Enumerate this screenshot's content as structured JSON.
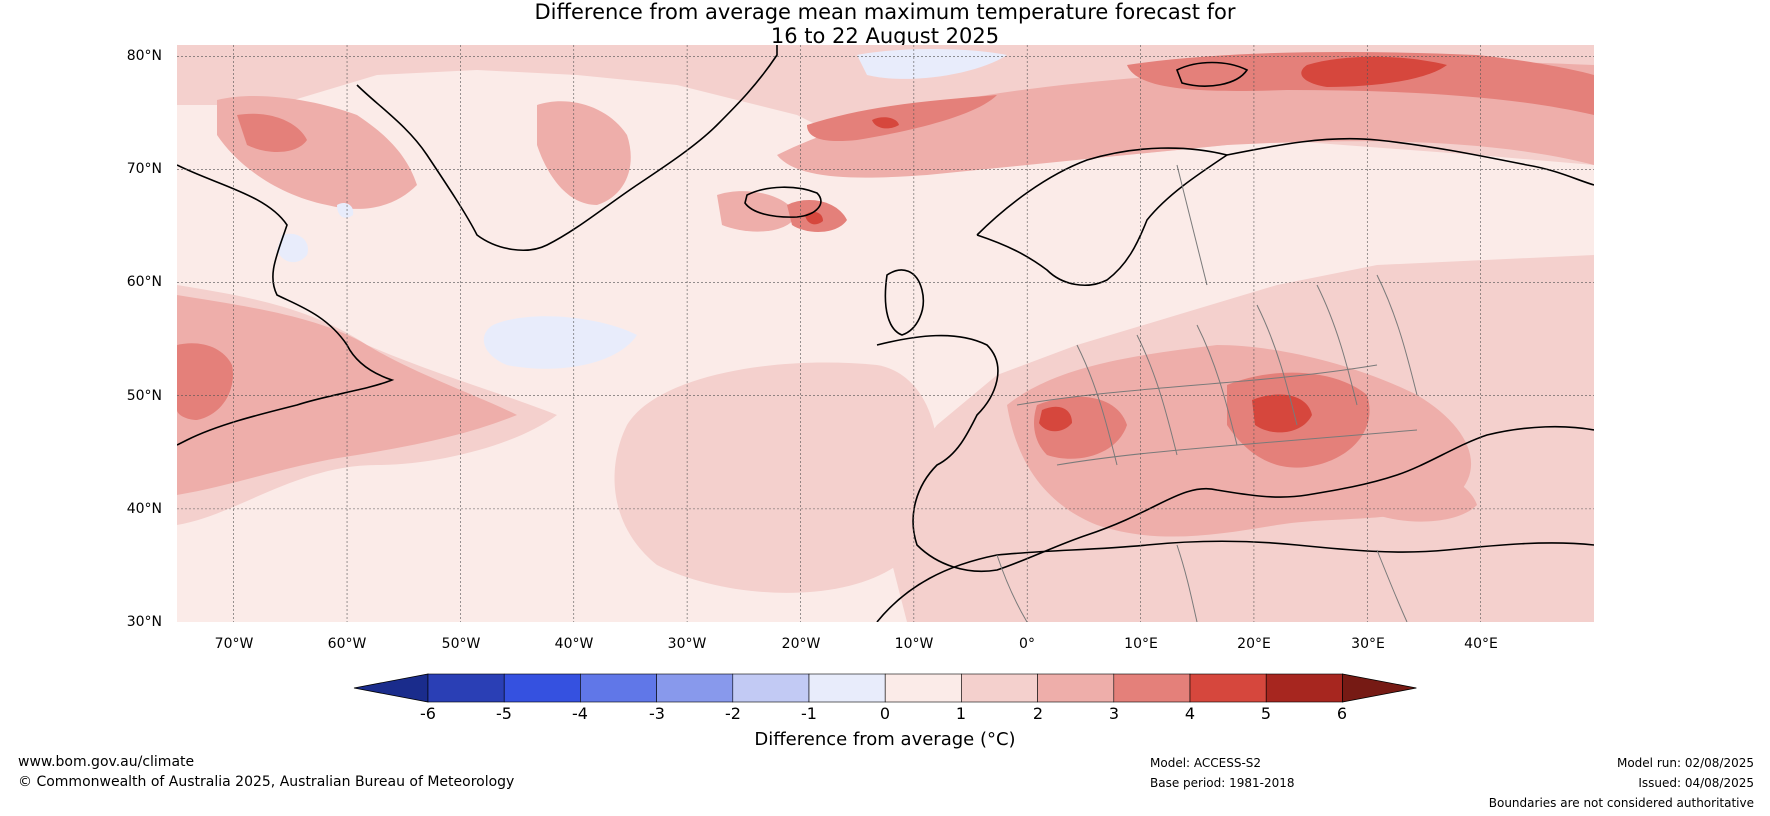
{
  "title": {
    "line1": "Difference from average mean maximum temperature forecast for",
    "line2": "16 to 22 August 2025"
  },
  "map": {
    "lat_labels": [
      "80°N",
      "70°N",
      "60°N",
      "50°N",
      "40°N",
      "30°N"
    ],
    "lon_labels": [
      "70°W",
      "60°W",
      "50°W",
      "40°W",
      "30°W",
      "20°W",
      "10°W",
      "0°",
      "10°E",
      "20°E",
      "30°E",
      "40°E"
    ],
    "extent": {
      "lon_min": -75,
      "lon_max": 50,
      "lat_min": 30,
      "lat_max": 81
    },
    "background_color": "#fbebe8"
  },
  "colorbar": {
    "ticks": [
      "-6",
      "-5",
      "-4",
      "-3",
      "-2",
      "-1",
      "0",
      "1",
      "2",
      "3",
      "4",
      "5",
      "6"
    ],
    "colors": [
      "#1a2c8c",
      "#2a3fb5",
      "#3551e0",
      "#6077e8",
      "#8899ec",
      "#c2caf4",
      "#e8ecfb",
      "#fbebe8",
      "#f4d0cd",
      "#eeaeaa",
      "#e4807a",
      "#d6473d",
      "#a7261f",
      "#761a14"
    ],
    "label": "Difference from average (°C)"
  },
  "footer": {
    "website": "www.bom.gov.au/climate",
    "copyright": "© Commonwealth of Australia 2025, Australian Bureau of Meteorology",
    "model": "Model: ACCESS-S2",
    "base_period": "Base period: 1981-2018",
    "model_run": "Model run: 02/08/2025",
    "issued": "Issued: 04/08/2025",
    "disclaimer": "Boundaries are not considered authoritative"
  }
}
